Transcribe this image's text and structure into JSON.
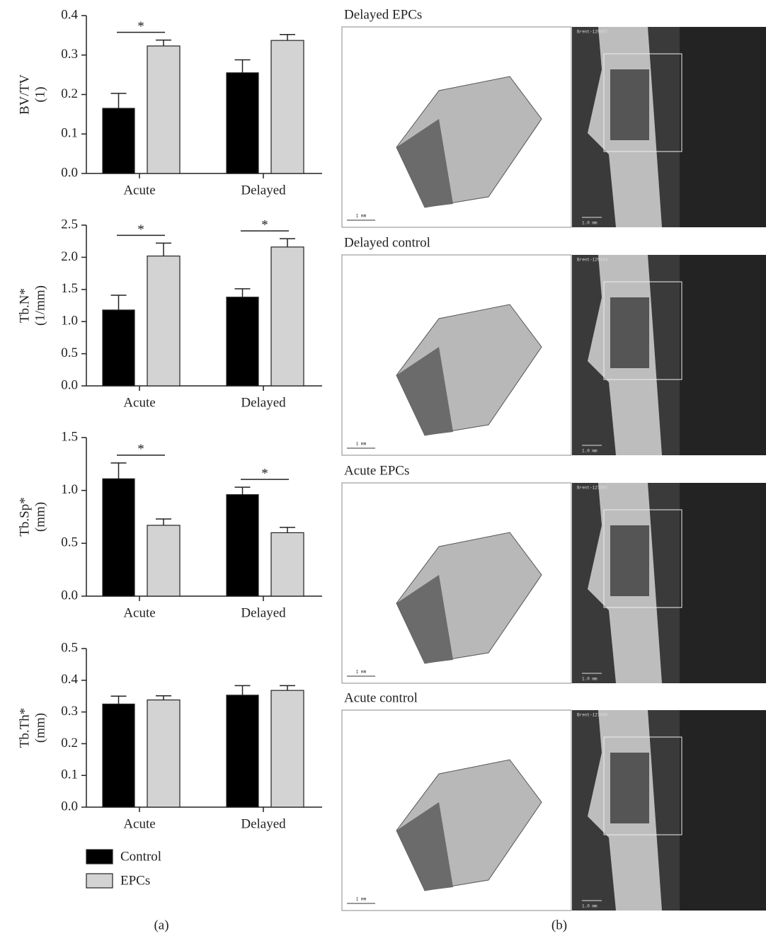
{
  "chart_data": [
    {
      "type": "bar",
      "ylabel": [
        "BV/TV",
        "(1)"
      ],
      "categories": [
        "Acute",
        "Delayed"
      ],
      "series": [
        {
          "name": "Control",
          "color": "#000000",
          "values": [
            0.165,
            0.255
          ],
          "errors": [
            0.038,
            0.033
          ]
        },
        {
          "name": "EPCs",
          "color": "#d3d3d3",
          "values": [
            0.323,
            0.337
          ],
          "errors": [
            0.015,
            0.015
          ]
        }
      ],
      "annotations": [
        "*",
        null
      ],
      "ylim": [
        0,
        0.4
      ],
      "yticks": [
        {
          "value": 0,
          "label": "0.0"
        },
        0.1,
        0.2,
        0.3,
        0.4
      ]
    },
    {
      "type": "bar",
      "ylabel": [
        "Tb.N*",
        "(1/mm)"
      ],
      "categories": [
        "Acute",
        "Delayed"
      ],
      "series": [
        {
          "color": "#000000",
          "values": [
            1.18,
            1.38
          ],
          "errors": [
            0.23,
            0.13
          ]
        },
        {
          "color": "#d3d3d3",
          "values": [
            2.02,
            2.16
          ],
          "errors": [
            0.2,
            0.13
          ]
        }
      ],
      "annotations": [
        "*",
        "*"
      ],
      "ylim": [
        0,
        2.5
      ],
      "yticks": [
        {
          "value": 0,
          "label": "0.0"
        },
        0.5,
        {
          "value": 1,
          "label": "1.0"
        },
        1.5,
        {
          "value": 2,
          "label": "2.0"
        },
        2.5
      ]
    },
    {
      "type": "bar",
      "ylabel": [
        "Tb.Sp*",
        "(mm)"
      ],
      "categories": [
        "Acute",
        "Delayed"
      ],
      "series": [
        {
          "color": "#000000",
          "values": [
            1.11,
            0.96
          ],
          "errors": [
            0.15,
            0.07
          ]
        },
        {
          "color": "#d3d3d3",
          "values": [
            0.67,
            0.6
          ],
          "errors": [
            0.06,
            0.05
          ]
        }
      ],
      "annotations": [
        "*",
        "*"
      ],
      "ylim": [
        0,
        1.5
      ],
      "yticks": [
        {
          "value": 0,
          "label": "0.0"
        },
        0.5,
        {
          "value": 1,
          "label": "1.0"
        },
        1.5
      ]
    },
    {
      "type": "bar",
      "ylabel": [
        "Tb.Th*",
        "(mm)"
      ],
      "categories": [
        "Acute",
        "Delayed"
      ],
      "series": [
        {
          "color": "#000000",
          "values": [
            0.325,
            0.353
          ],
          "errors": [
            0.025,
            0.03
          ]
        },
        {
          "color": "#d3d3d3",
          "values": [
            0.338,
            0.368
          ],
          "errors": [
            0.013,
            0.015
          ]
        }
      ],
      "ylim": [
        0,
        0.5
      ],
      "yticks": [
        {
          "value": 0,
          "label": "0.0"
        },
        0.1,
        0.2,
        0.3,
        0.4,
        0.5
      ]
    }
  ],
  "panel_labels": [
    "(a)",
    "(b)"
  ],
  "images": [
    {
      "title": "Delayed EPCs",
      "scan_id": "Brent-129407",
      "render_scale": "1 mm",
      "scan_scale": "1.0 mm"
    },
    {
      "title": "Delayed control",
      "scan_id": "Brent-129414",
      "render_scale": "1 mm",
      "scan_scale": "1.0 mm"
    },
    {
      "title": "Acute EPCs",
      "scan_id": "Brent-127597",
      "render_scale": "1 mm",
      "scan_scale": "1.0 mm"
    },
    {
      "title": "Acute control",
      "scan_id": "Brent-127596",
      "render_scale": "1 mm",
      "scan_scale": "1.0 mm"
    }
  ]
}
